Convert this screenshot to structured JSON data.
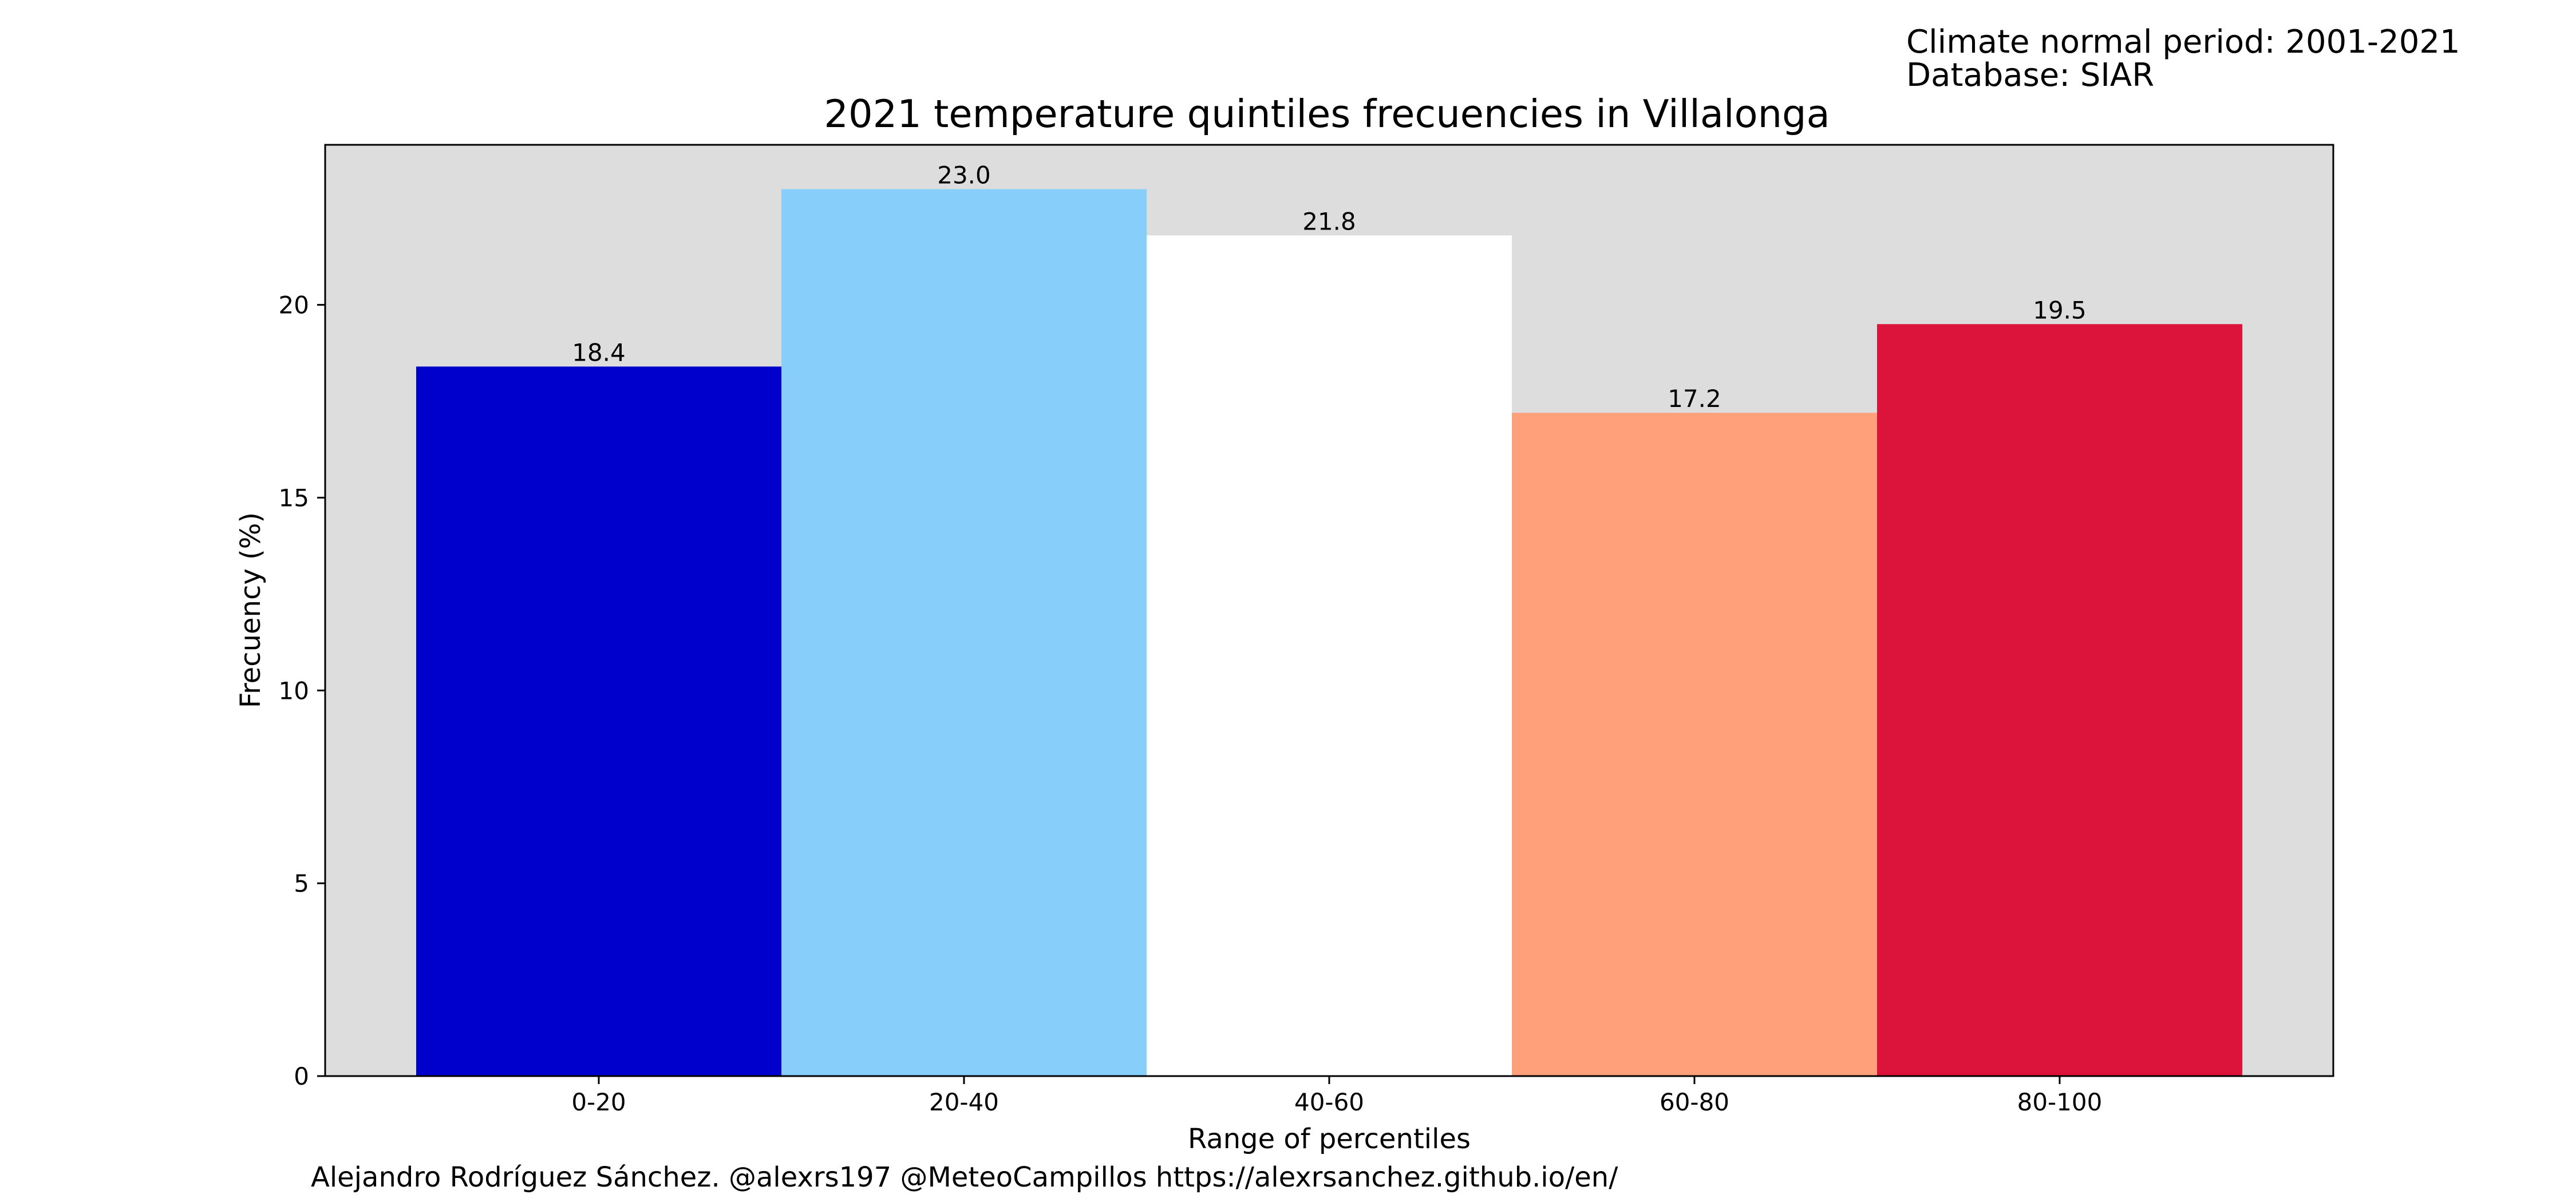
{
  "header_note": {
    "line1": "Climate normal period: 2001-2021",
    "line2": "Database: SIAR"
  },
  "credit": "Alejandro Rodríguez Sánchez. @alexrs197 @MeteoCampillos   https://alexrsanchez.github.io/en/",
  "chart_data": {
    "type": "bar",
    "title": "2021 temperature quintiles frecuencies in Villalonga",
    "xlabel": "Range of percentiles",
    "ylabel": "Frecuency (%)",
    "categories": [
      "0-20",
      "20-40",
      "40-60",
      "60-80",
      "80-100"
    ],
    "values": [
      18.4,
      23.0,
      21.8,
      17.2,
      19.5
    ],
    "value_labels": [
      "18.4",
      "23.0",
      "21.8",
      "17.2",
      "19.5"
    ],
    "colors": [
      "#0000cd",
      "#87cefa",
      "#ffffff",
      "#ffa07a",
      "#dc143c"
    ],
    "ylim": [
      0,
      24.15
    ],
    "yticks": [
      0,
      5,
      10,
      15,
      20
    ],
    "plot_background": "#dddddd",
    "grid": false,
    "legend": "none"
  }
}
